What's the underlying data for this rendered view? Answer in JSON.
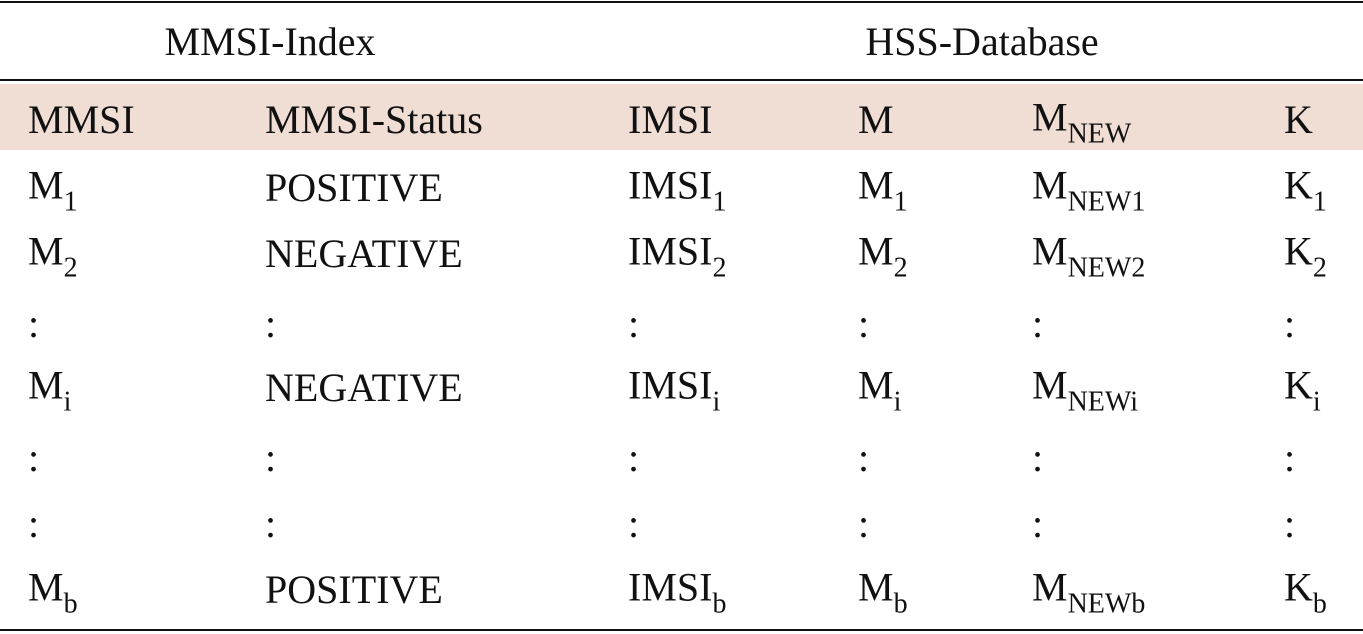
{
  "group_headers": [
    "MMSI-Index",
    "HSS-Database"
  ],
  "table": {
    "header": [
      "MMSI",
      "MMSI-Status",
      "IMSI",
      "M",
      {
        "base": "M",
        "sub": "NEW"
      },
      "K"
    ],
    "rows": [
      [
        {
          "base": "M",
          "sub": "1"
        },
        "POSITIVE",
        {
          "base": "IMSI",
          "sub": "1"
        },
        {
          "base": "M",
          "sub": "1"
        },
        {
          "base": "M",
          "sub": "NEW1"
        },
        {
          "base": "K",
          "sub": "1"
        }
      ],
      [
        {
          "base": "M",
          "sub": "2"
        },
        "NEGATIVE",
        {
          "base": "IMSI",
          "sub": "2"
        },
        {
          "base": "M",
          "sub": "2"
        },
        {
          "base": "M",
          "sub": "NEW2"
        },
        {
          "base": "K",
          "sub": "2"
        }
      ],
      [
        ":",
        ":",
        ":",
        ":",
        ":",
        ":"
      ],
      [
        {
          "base": "M",
          "sub": "i"
        },
        "NEGATIVE",
        {
          "base": "IMSI",
          "sub": "i"
        },
        {
          "base": "M",
          "sub": "i"
        },
        {
          "base": "M",
          "sub": "NEWi"
        },
        {
          "base": "K",
          "sub": "i"
        }
      ],
      [
        ":",
        ":",
        ":",
        ":",
        ":",
        ":"
      ],
      [
        ":",
        ":",
        ":",
        ":",
        ":",
        ":"
      ],
      [
        {
          "base": "M",
          "sub": "b"
        },
        "POSITIVE",
        {
          "base": "IMSI",
          "sub": "b"
        },
        {
          "base": "M",
          "sub": "b"
        },
        {
          "base": "M",
          "sub": "NEWb"
        },
        {
          "base": "K",
          "sub": "b"
        }
      ]
    ]
  }
}
